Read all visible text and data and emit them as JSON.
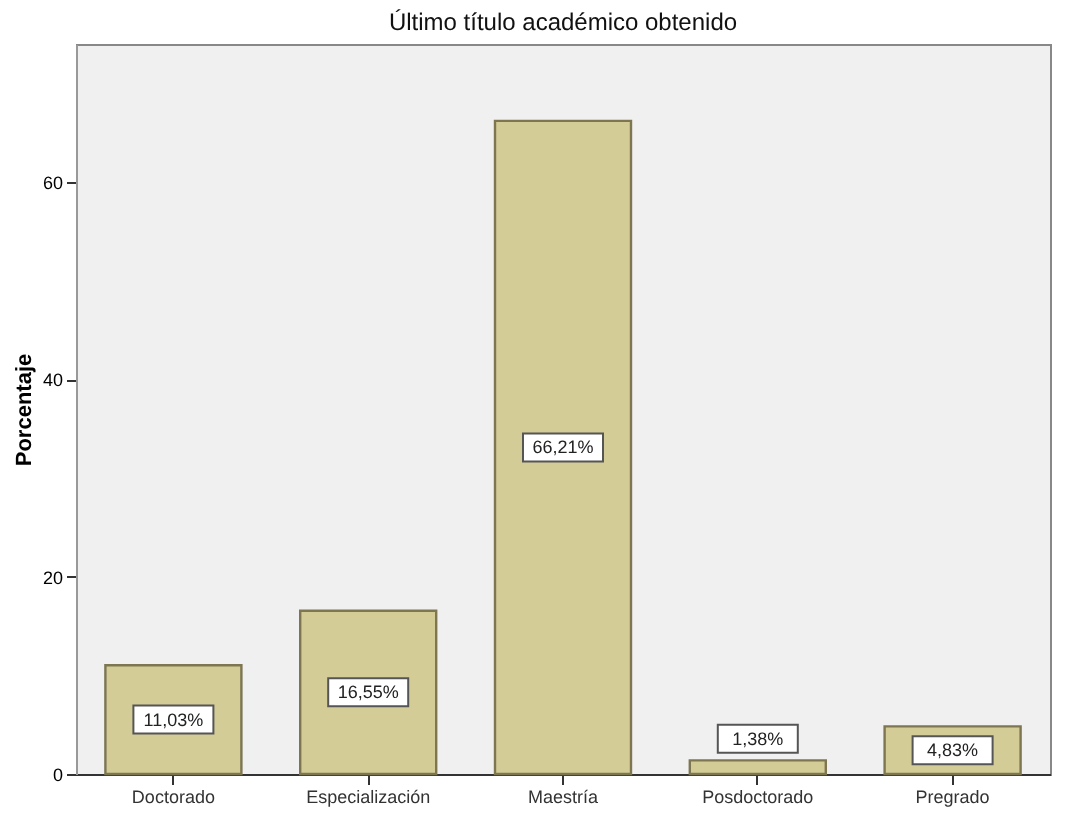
{
  "chart_data": {
    "type": "bar",
    "title": "Último título académico obtenido",
    "ylabel": "Porcentaje",
    "categories": [
      "Doctorado",
      "Especialización",
      "Maestría",
      "Posdoctorado",
      "Pregrado"
    ],
    "values": [
      11.03,
      16.55,
      66.21,
      1.38,
      4.83
    ],
    "value_labels": [
      "11,03%",
      "16,55%",
      "66,21%",
      "1,38%",
      "4,83%"
    ],
    "color": "#d3cc97",
    "ylim": [
      0,
      74
    ],
    "yticks": [
      0,
      20,
      40,
      60
    ],
    "grid": false
  }
}
